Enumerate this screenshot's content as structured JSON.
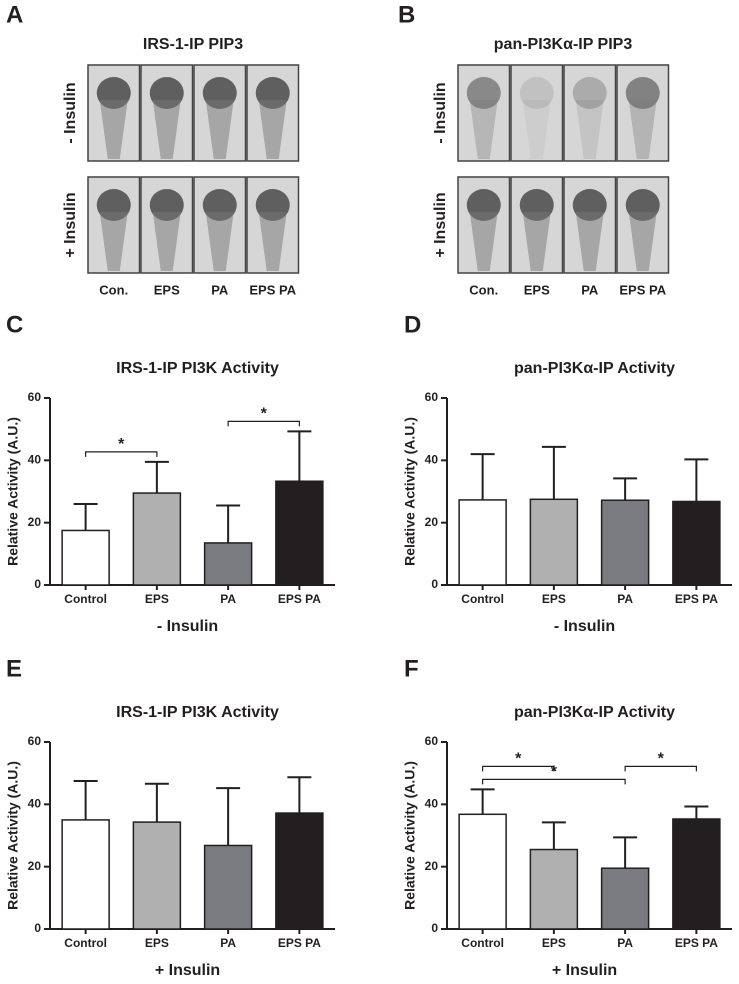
{
  "blots": [
    {
      "panel": "A",
      "title": "IRS-1-IP PIP3",
      "rows": [
        "- Insulin",
        "+ Insulin"
      ],
      "lanes": [
        "Con.",
        "EPS",
        "PA",
        "EPS PA"
      ]
    },
    {
      "panel": "B",
      "title": "pan-PI3Kα-IP PIP3",
      "rows": [
        "- Insulin",
        "+ Insulin"
      ],
      "lanes": [
        "Con.",
        "EPS",
        "PA",
        "EPS PA"
      ]
    }
  ],
  "chart_data": [
    {
      "type": "bar",
      "panel": "C",
      "title": "IRS-1-IP PI3K Activity",
      "xlabel": "- Insulin",
      "ylabel": "Relative Activity (A.U.)",
      "categories": [
        "Control",
        "EPS",
        "PA",
        "EPS PA"
      ],
      "values": [
        17.5,
        29.5,
        13.5,
        33.3
      ],
      "errors": [
        8.5,
        10,
        12,
        16
      ],
      "colors": [
        "#ffffff",
        "#b0b0b0",
        "#7a7b80",
        "#231f20"
      ],
      "ylim": [
        0,
        60
      ],
      "yticks": [
        0,
        20,
        40,
        60
      ],
      "brackets": [
        {
          "from": 0,
          "to": 1,
          "label": "*"
        },
        {
          "from": 2,
          "to": 3,
          "label": "*"
        }
      ]
    },
    {
      "type": "bar",
      "panel": "D",
      "title": "pan-PI3Kα-IP Activity",
      "xlabel": "- Insulin",
      "ylabel": "Relative Activity (A.U.)",
      "categories": [
        "Control",
        "EPS",
        "PA",
        "EPS PA"
      ],
      "values": [
        27.3,
        27.5,
        27.2,
        26.8
      ],
      "errors": [
        14.7,
        16.8,
        7,
        13.5
      ],
      "colors": [
        "#ffffff",
        "#b0b0b0",
        "#7a7b80",
        "#231f20"
      ],
      "ylim": [
        0,
        60
      ],
      "yticks": [
        0,
        20,
        40,
        60
      ],
      "brackets": []
    },
    {
      "type": "bar",
      "panel": "E",
      "title": "IRS-1-IP PI3K Activity",
      "xlabel": "+ Insulin",
      "ylabel": "Relative Activity (A.U.)",
      "categories": [
        "Control",
        "EPS",
        "PA",
        "EPS PA"
      ],
      "values": [
        35,
        34.3,
        26.8,
        37.2
      ],
      "errors": [
        12.5,
        12.3,
        18.4,
        11.5
      ],
      "colors": [
        "#ffffff",
        "#b0b0b0",
        "#7a7b80",
        "#231f20"
      ],
      "ylim": [
        0,
        60
      ],
      "yticks": [
        0,
        20,
        40,
        60
      ],
      "brackets": []
    },
    {
      "type": "bar",
      "panel": "F",
      "title": "pan-PI3Kα-IP Activity",
      "xlabel": "+ Insulin",
      "ylabel": "Relative Activity (A.U.)",
      "categories": [
        "Control",
        "EPS",
        "PA",
        "EPS PA"
      ],
      "values": [
        36.8,
        25.5,
        19.5,
        35.3
      ],
      "errors": [
        8,
        8.7,
        9.9,
        4
      ],
      "colors": [
        "#ffffff",
        "#b0b0b0",
        "#7a7b80",
        "#231f20"
      ],
      "ylim": [
        0,
        60
      ],
      "yticks": [
        0,
        20,
        40,
        60
      ],
      "brackets": [
        {
          "from": 0,
          "to": 2,
          "label": "*"
        },
        {
          "from": 2,
          "to": 3,
          "label": "*"
        },
        {
          "from": 0,
          "to": 1,
          "label": "*"
        }
      ]
    }
  ]
}
